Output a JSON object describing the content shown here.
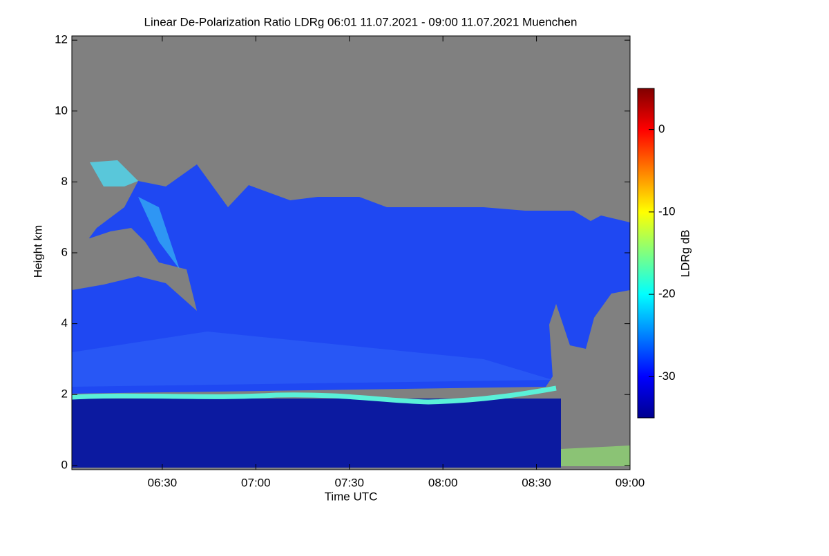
{
  "chart_data": {
    "type": "heatmap",
    "title": "Linear De-Polarization Ratio LDRg   06:01 11.07.2021 - 09:00 11.07.2021 Muenchen",
    "x_label": "Time UTC",
    "y_label": "Height km",
    "colorbar_label": "LDRg dB",
    "xlim": [
      6.0167,
      9.0
    ],
    "xticks": [
      {
        "value": 6.5,
        "label": "06:30"
      },
      {
        "value": 7.0,
        "label": "07:00"
      },
      {
        "value": 7.5,
        "label": "07:30"
      },
      {
        "value": 8.0,
        "label": "08:00"
      },
      {
        "value": 8.5,
        "label": "08:30"
      },
      {
        "value": 9.0,
        "label": "09:00"
      }
    ],
    "ylim": [
      -0.12,
      12.12
    ],
    "yticks": [
      0,
      2,
      4,
      6,
      8,
      10,
      12
    ],
    "clim": [
      -35,
      5
    ],
    "cticks": [
      -30,
      -20,
      -10,
      0
    ],
    "colormap": [
      "#00008f",
      "#0000ff",
      "#0080ff",
      "#00ffff",
      "#80ff80",
      "#ffff00",
      "#ff8000",
      "#ff0000",
      "#800000"
    ]
  }
}
